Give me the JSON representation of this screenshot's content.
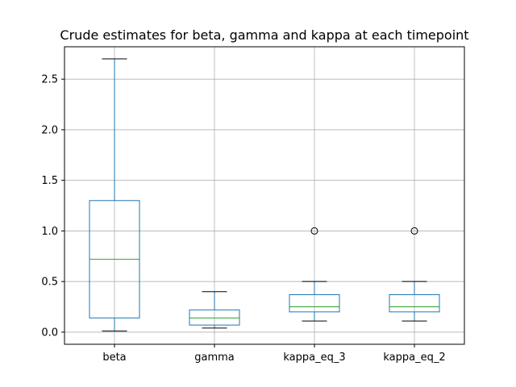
{
  "chart_data": {
    "type": "box",
    "title": "Crude estimates for beta, gamma and kappa at each timepoint",
    "xlabel": "",
    "ylabel": "",
    "categories": [
      "beta",
      "gamma",
      "kappa_eq_3",
      "kappa_eq_2"
    ],
    "ylim": [
      -0.12,
      2.82
    ],
    "yticks": [
      0.0,
      0.5,
      1.0,
      1.5,
      2.0,
      2.5
    ],
    "ytick_labels": [
      "0.0",
      "0.5",
      "1.0",
      "1.5",
      "2.0",
      "2.5"
    ],
    "grid": true,
    "box_color": "#1f77b4",
    "median_color": "#2ca02c",
    "outlier_color": "#000000",
    "boxes": [
      {
        "name": "beta",
        "whisker_low": 0.01,
        "q1": 0.14,
        "median": 0.72,
        "q3": 1.3,
        "whisker_high": 2.7,
        "outliers": []
      },
      {
        "name": "gamma",
        "whisker_low": 0.04,
        "q1": 0.07,
        "median": 0.14,
        "q3": 0.22,
        "whisker_high": 0.4,
        "outliers": []
      },
      {
        "name": "kappa_eq_3",
        "whisker_low": 0.11,
        "q1": 0.2,
        "median": 0.25,
        "q3": 0.37,
        "whisker_high": 0.5,
        "outliers": [
          1.0
        ]
      },
      {
        "name": "kappa_eq_2",
        "whisker_low": 0.11,
        "q1": 0.2,
        "median": 0.25,
        "q3": 0.37,
        "whisker_high": 0.5,
        "outliers": [
          1.0
        ]
      }
    ]
  }
}
